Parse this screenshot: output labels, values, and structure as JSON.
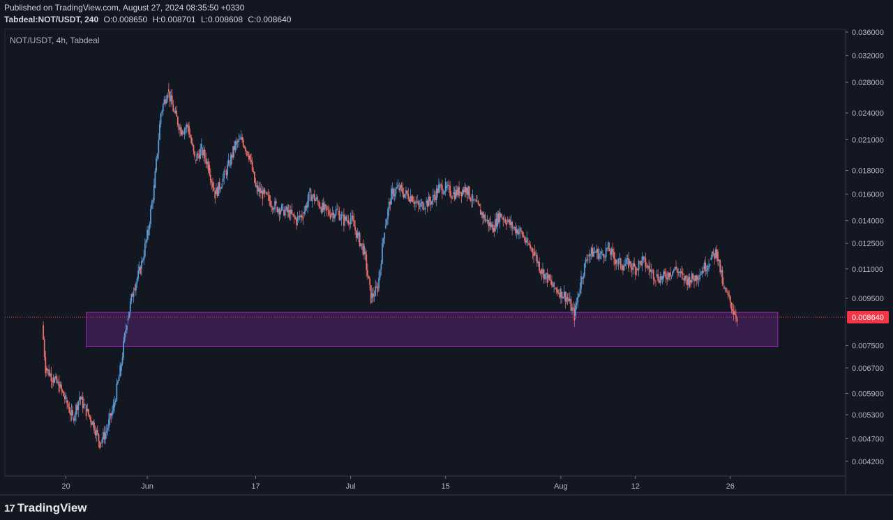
{
  "header": {
    "published": "Published on TradingView.com, August 27, 2024 08:35:50 +0330",
    "symbol": "Tabdeal:NOT/USDT, 240",
    "o": "O:0.008650",
    "h": "H:0.008701",
    "l": "L:0.008608",
    "c": "C:0.008640"
  },
  "chart_title": "NOT/USDT, 4h, Tabdeal",
  "brand": {
    "logo": "17",
    "name": "TradingView"
  },
  "colors": {
    "background": "#131722",
    "up": "#5b9bd5",
    "down": "#e9716b",
    "zone_fill": "#3d1e52",
    "zone_border": "#9c27b0",
    "price_line": "#f23645"
  },
  "chart_data": {
    "type": "candlestick",
    "scale": "log",
    "y_tick_labels": [
      "0.036000",
      "0.032000",
      "0.028000",
      "0.024000",
      "0.021000",
      "0.018000",
      "0.016000",
      "0.014000",
      "0.012500",
      "0.011000",
      "0.009500",
      "0.008640",
      "0.007500",
      "0.006700",
      "0.005900",
      "0.005300",
      "0.004700",
      "0.004200"
    ],
    "y_ticks": [
      0.036,
      0.032,
      0.028,
      0.024,
      0.021,
      0.018,
      0.016,
      0.014,
      0.0125,
      0.011,
      0.0095,
      0.0075,
      0.0067,
      0.0059,
      0.0053,
      0.0047,
      0.0042
    ],
    "ylim": [
      0.0039,
      0.0365
    ],
    "x_tick_labels": [
      "20",
      "Jun",
      "17",
      "Jul",
      "15",
      "Aug",
      "12",
      "26"
    ],
    "x_tick_dates": [
      "2024-05-20",
      "2024-06-01",
      "2024-06-17",
      "2024-07-01",
      "2024-07-15",
      "2024-08-01",
      "2024-08-12",
      "2024-08-26"
    ],
    "xlim": [
      "2024-05-11",
      "2024-09-12"
    ],
    "last_price": 0.00864,
    "last_price_label": "0.008640",
    "zone": {
      "x_start": "2024-05-23",
      "x_end": "2024-09-02",
      "y_low": 0.00745,
      "y_high": 0.00885
    },
    "path": [
      [
        "2024-05-16T12:00",
        0.0083
      ],
      [
        "2024-05-17",
        0.0067
      ],
      [
        "2024-05-18",
        0.0064
      ],
      [
        "2024-05-19",
        0.0061
      ],
      [
        "2024-05-20",
        0.0057
      ],
      [
        "2024-05-21",
        0.0052
      ],
      [
        "2024-05-22",
        0.0058
      ],
      [
        "2024-05-23",
        0.0054
      ],
      [
        "2024-05-24",
        0.0051
      ],
      [
        "2024-05-25",
        0.0046
      ],
      [
        "2024-05-26",
        0.0049
      ],
      [
        "2024-05-27",
        0.0055
      ],
      [
        "2024-05-28",
        0.0066
      ],
      [
        "2024-05-29",
        0.0085
      ],
      [
        "2024-05-30",
        0.01
      ],
      [
        "2024-05-31",
        0.011
      ],
      [
        "2024-06-01",
        0.013
      ],
      [
        "2024-06-02",
        0.0165
      ],
      [
        "2024-06-03",
        0.024
      ],
      [
        "2024-06-04",
        0.027
      ],
      [
        "2024-06-05",
        0.024
      ],
      [
        "2024-06-06",
        0.022
      ],
      [
        "2024-06-07",
        0.0225
      ],
      [
        "2024-06-08",
        0.019
      ],
      [
        "2024-06-09",
        0.02
      ],
      [
        "2024-06-10",
        0.0185
      ],
      [
        "2024-06-11",
        0.016
      ],
      [
        "2024-06-12",
        0.017
      ],
      [
        "2024-06-13",
        0.0185
      ],
      [
        "2024-06-14",
        0.0205
      ],
      [
        "2024-06-15",
        0.021
      ],
      [
        "2024-06-16",
        0.0195
      ],
      [
        "2024-06-17",
        0.0165
      ],
      [
        "2024-06-18",
        0.016
      ],
      [
        "2024-06-19",
        0.0155
      ],
      [
        "2024-06-20",
        0.015
      ],
      [
        "2024-06-21",
        0.0148
      ],
      [
        "2024-06-22",
        0.0145
      ],
      [
        "2024-06-23",
        0.014
      ],
      [
        "2024-06-24",
        0.0145
      ],
      [
        "2024-06-25",
        0.016
      ],
      [
        "2024-06-26",
        0.0155
      ],
      [
        "2024-06-27",
        0.0148
      ],
      [
        "2024-06-28",
        0.0145
      ],
      [
        "2024-06-29",
        0.0147
      ],
      [
        "2024-06-30",
        0.014
      ],
      [
        "2024-07-01",
        0.0142
      ],
      [
        "2024-07-02",
        0.013
      ],
      [
        "2024-07-03",
        0.012
      ],
      [
        "2024-07-04",
        0.0095
      ],
      [
        "2024-07-05",
        0.01
      ],
      [
        "2024-07-06",
        0.0135
      ],
      [
        "2024-07-07",
        0.016
      ],
      [
        "2024-07-08",
        0.0165
      ],
      [
        "2024-07-09",
        0.016
      ],
      [
        "2024-07-10",
        0.0158
      ],
      [
        "2024-07-11",
        0.015
      ],
      [
        "2024-07-12",
        0.0153
      ],
      [
        "2024-07-13",
        0.0155
      ],
      [
        "2024-07-14",
        0.0165
      ],
      [
        "2024-07-15",
        0.0165
      ],
      [
        "2024-07-16",
        0.016
      ],
      [
        "2024-07-17",
        0.0162
      ],
      [
        "2024-07-18",
        0.0165
      ],
      [
        "2024-07-19",
        0.0155
      ],
      [
        "2024-07-20",
        0.0148
      ],
      [
        "2024-07-21",
        0.014
      ],
      [
        "2024-07-22",
        0.0135
      ],
      [
        "2024-07-23",
        0.0145
      ],
      [
        "2024-07-24",
        0.014
      ],
      [
        "2024-07-25",
        0.0135
      ],
      [
        "2024-07-26",
        0.0133
      ],
      [
        "2024-07-27",
        0.0125
      ],
      [
        "2024-07-28",
        0.012
      ],
      [
        "2024-07-29",
        0.011
      ],
      [
        "2024-07-30",
        0.0105
      ],
      [
        "2024-07-31",
        0.01
      ],
      [
        "2024-08-01",
        0.0098
      ],
      [
        "2024-08-02",
        0.0095
      ],
      [
        "2024-08-03",
        0.0087
      ],
      [
        "2024-08-04",
        0.0105
      ],
      [
        "2024-08-05",
        0.0118
      ],
      [
        "2024-08-06",
        0.012
      ],
      [
        "2024-08-07",
        0.0118
      ],
      [
        "2024-08-08",
        0.0122
      ],
      [
        "2024-08-09",
        0.0115
      ],
      [
        "2024-08-10",
        0.0112
      ],
      [
        "2024-08-11",
        0.0113
      ],
      [
        "2024-08-12",
        0.011
      ],
      [
        "2024-08-13",
        0.0115
      ],
      [
        "2024-08-14",
        0.011
      ],
      [
        "2024-08-15",
        0.0106
      ],
      [
        "2024-08-16",
        0.0105
      ],
      [
        "2024-08-17",
        0.0108
      ],
      [
        "2024-08-18",
        0.011
      ],
      [
        "2024-08-19",
        0.0105
      ],
      [
        "2024-08-20",
        0.0104
      ],
      [
        "2024-08-21",
        0.0106
      ],
      [
        "2024-08-22",
        0.011
      ],
      [
        "2024-08-23",
        0.0115
      ],
      [
        "2024-08-24",
        0.012
      ],
      [
        "2024-08-25",
        0.01
      ],
      [
        "2024-08-26",
        0.0093
      ],
      [
        "2024-08-26T12:00",
        0.0089
      ],
      [
        "2024-08-27",
        0.00864
      ]
    ]
  }
}
